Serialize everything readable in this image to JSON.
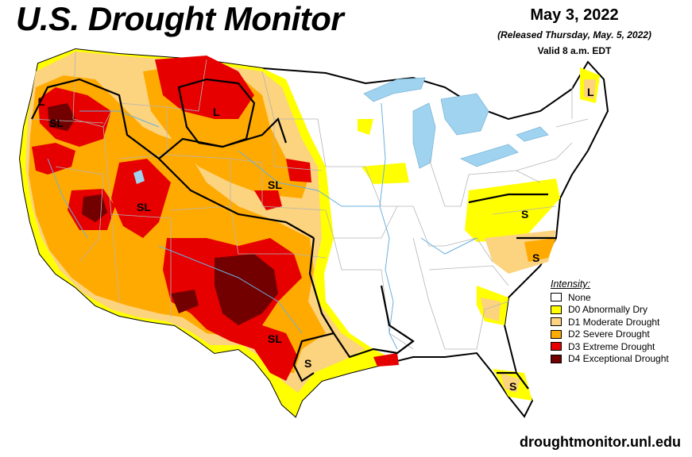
{
  "header": {
    "title": "U.S. Drought Monitor",
    "date": "May 3, 2022",
    "released": "(Released Thursday, May. 5, 2022)",
    "valid": "Valid 8 a.m. EDT"
  },
  "legend": {
    "title": "Intensity:",
    "items": [
      {
        "label": "None",
        "color": "#ffffff"
      },
      {
        "label": "D0 Abnormally Dry",
        "color": "#ffff00"
      },
      {
        "label": "D1 Moderate Drought",
        "color": "#fcd37f"
      },
      {
        "label": "D2 Severe Drought",
        "color": "#ffaa00"
      },
      {
        "label": "D3 Extreme Drought",
        "color": "#e60000"
      },
      {
        "label": "D4 Exceptional Drought",
        "color": "#730000"
      }
    ]
  },
  "impact_labels": [
    "L",
    "SL",
    "L",
    "SL",
    "SL",
    "S",
    "S",
    "SL",
    "S",
    "L",
    "S"
  ],
  "footer": {
    "url": "droughtmonitor.unl.edu"
  },
  "colors": {
    "water": "#9fd3f0",
    "state_border": "#b5b5b5",
    "nation_border": "#000000"
  }
}
